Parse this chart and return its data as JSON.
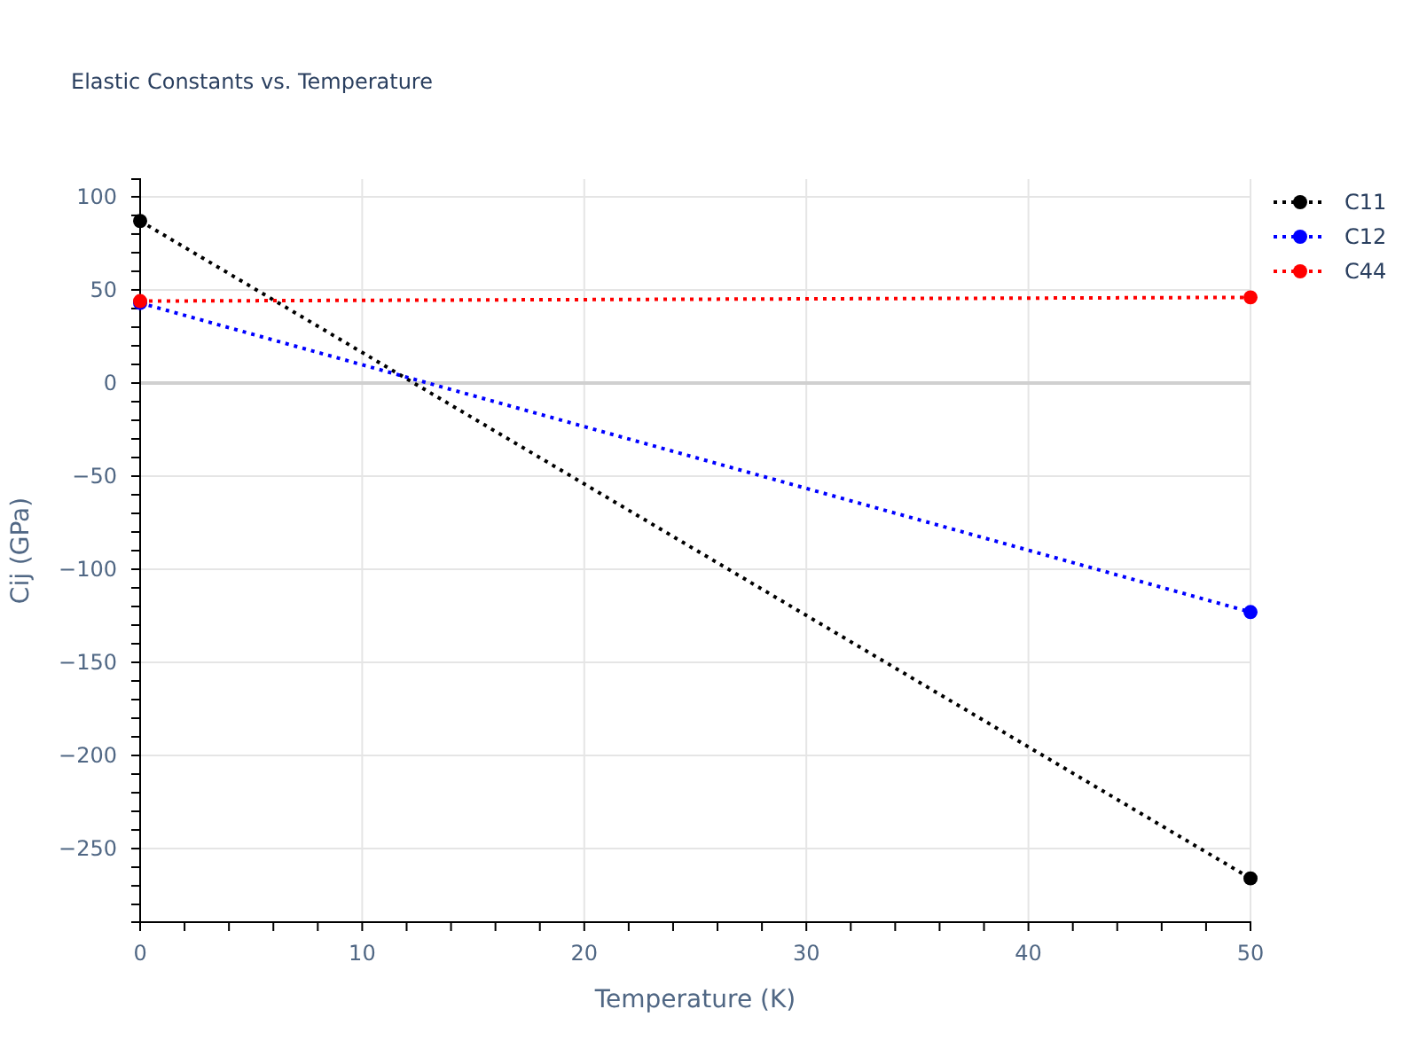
{
  "chart_data": {
    "type": "line",
    "title": "Elastic Constants vs. Temperature",
    "xlabel": "Temperature (K)",
    "ylabel": "Cij (GPa)",
    "x": [
      0,
      50
    ],
    "series": [
      {
        "name": "C11",
        "color": "#000000",
        "values": [
          87,
          -266
        ]
      },
      {
        "name": "C12",
        "color": "#0000ff",
        "values": [
          43,
          -123
        ]
      },
      {
        "name": "C44",
        "color": "#ff0000",
        "values": [
          44,
          46
        ]
      }
    ],
    "xlim": [
      0,
      50
    ],
    "ylim": [
      -289.5,
      109.5
    ],
    "xticks": [
      0,
      {
        "value": 2,
        "label": null
      },
      {
        "value": 4,
        "label": null
      },
      {
        "value": 6,
        "label": null
      },
      {
        "value": 8,
        "label": null
      },
      10,
      {
        "value": 12,
        "label": null
      },
      {
        "value": 14,
        "label": null
      },
      {
        "value": 16,
        "label": null
      },
      {
        "value": 18,
        "label": null
      },
      20,
      {
        "value": 22,
        "label": null
      },
      {
        "value": 24,
        "label": null
      },
      {
        "value": 26,
        "label": null
      },
      {
        "value": 28,
        "label": null
      },
      30,
      {
        "value": 32,
        "label": null
      },
      {
        "value": 34,
        "label": null
      },
      {
        "value": 36,
        "label": null
      },
      {
        "value": 38,
        "label": null
      },
      40,
      {
        "value": 42,
        "label": null
      },
      {
        "value": 44,
        "label": null
      },
      {
        "value": 46,
        "label": null
      },
      {
        "value": 48,
        "label": null
      },
      50
    ],
    "yticks": [
      {
        "value": -280,
        "label": null
      },
      {
        "value": -270,
        "label": null
      },
      {
        "value": -260,
        "label": null
      },
      {
        "value": -250,
        "label": "−250"
      },
      {
        "value": -240,
        "label": null
      },
      {
        "value": -230,
        "label": null
      },
      {
        "value": -220,
        "label": null
      },
      {
        "value": -210,
        "label": null
      },
      {
        "value": -200,
        "label": "−200"
      },
      {
        "value": -190,
        "label": null
      },
      {
        "value": -180,
        "label": null
      },
      {
        "value": -170,
        "label": null
      },
      {
        "value": -160,
        "label": null
      },
      {
        "value": -150,
        "label": "−150"
      },
      {
        "value": -140,
        "label": null
      },
      {
        "value": -130,
        "label": null
      },
      {
        "value": -120,
        "label": null
      },
      {
        "value": -110,
        "label": null
      },
      {
        "value": -100,
        "label": "−100"
      },
      {
        "value": -90,
        "label": null
      },
      {
        "value": -80,
        "label": null
      },
      {
        "value": -70,
        "label": null
      },
      {
        "value": -60,
        "label": null
      },
      {
        "value": -50,
        "label": "−50"
      },
      {
        "value": -40,
        "label": null
      },
      {
        "value": -30,
        "label": null
      },
      {
        "value": -20,
        "label": null
      },
      {
        "value": -10,
        "label": null
      },
      0,
      {
        "value": 10,
        "label": null
      },
      {
        "value": 20,
        "label": null
      },
      {
        "value": 30,
        "label": null
      },
      {
        "value": 40,
        "label": null
      },
      50,
      {
        "value": 60,
        "label": null
      },
      {
        "value": 70,
        "label": null
      },
      {
        "value": 80,
        "label": null
      },
      {
        "value": 90,
        "label": null
      },
      100
    ],
    "grid": true,
    "legend": "top right",
    "marker": "circle",
    "line_style": "dotted"
  }
}
